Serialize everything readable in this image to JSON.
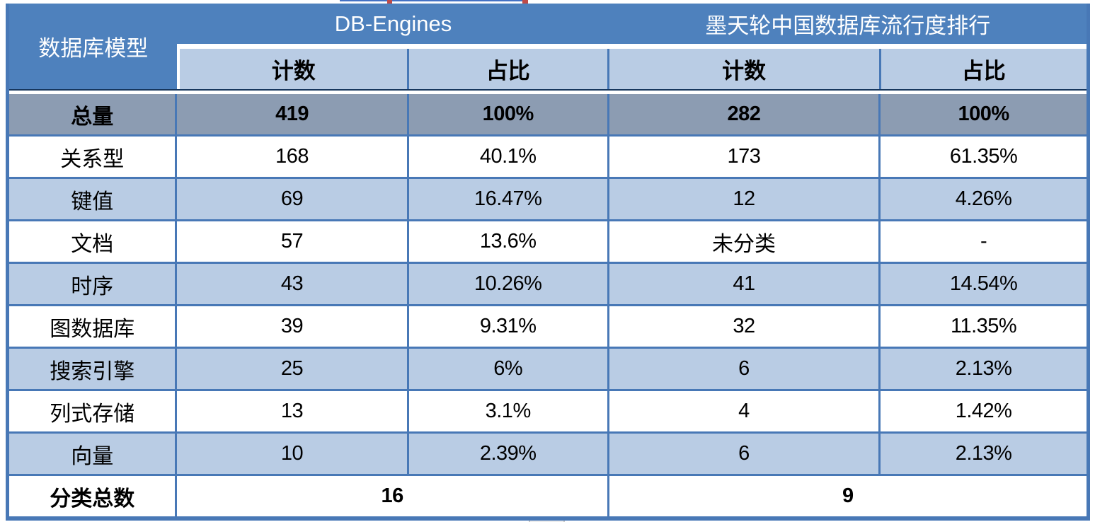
{
  "chart_data": {
    "type": "table",
    "corner_header": "数据库模型",
    "column_groups": [
      {
        "title": "DB-Engines",
        "subcolumns": [
          "计数",
          "占比"
        ]
      },
      {
        "title": "墨天轮中国数据库流行度排行",
        "subcolumns": [
          "计数",
          "占比"
        ]
      }
    ],
    "rows": [
      {
        "label": "总量",
        "values": [
          "419",
          "100%",
          "282",
          "100%"
        ],
        "emphasis": true
      },
      {
        "label": "关系型",
        "values": [
          "168",
          "40.1%",
          "173",
          "61.35%"
        ]
      },
      {
        "label": "键值",
        "values": [
          "69",
          "16.47%",
          "12",
          "4.26%"
        ]
      },
      {
        "label": "文档",
        "values": [
          "57",
          "13.6%",
          "未分类",
          "-"
        ]
      },
      {
        "label": "时序",
        "values": [
          "43",
          "10.26%",
          "41",
          "14.54%"
        ]
      },
      {
        "label": "图数据库",
        "values": [
          "39",
          "9.31%",
          "32",
          "11.35%"
        ]
      },
      {
        "label": "搜索引擎",
        "values": [
          "25",
          "6%",
          "6",
          "2.13%"
        ]
      },
      {
        "label": "列式存储",
        "values": [
          "13",
          "3.1%",
          "4",
          "1.42%"
        ]
      },
      {
        "label": "向量",
        "values": [
          "10",
          "2.39%",
          "6",
          "2.13%"
        ]
      }
    ],
    "footer": {
      "label": "分类总数",
      "db_engines_total": "16",
      "motianlun_total": "9"
    }
  },
  "colors": {
    "header_blue": "#4e81bd",
    "subheader_light_blue": "#b9cce4",
    "total_row_gray": "#8c9cb2",
    "stripe_light_blue": "#b9cce4",
    "border_blue": "#4878b6",
    "dark_separator": "#17375e",
    "artifact_red": "#bf4b48",
    "artifact_blue": "#4472c4"
  }
}
